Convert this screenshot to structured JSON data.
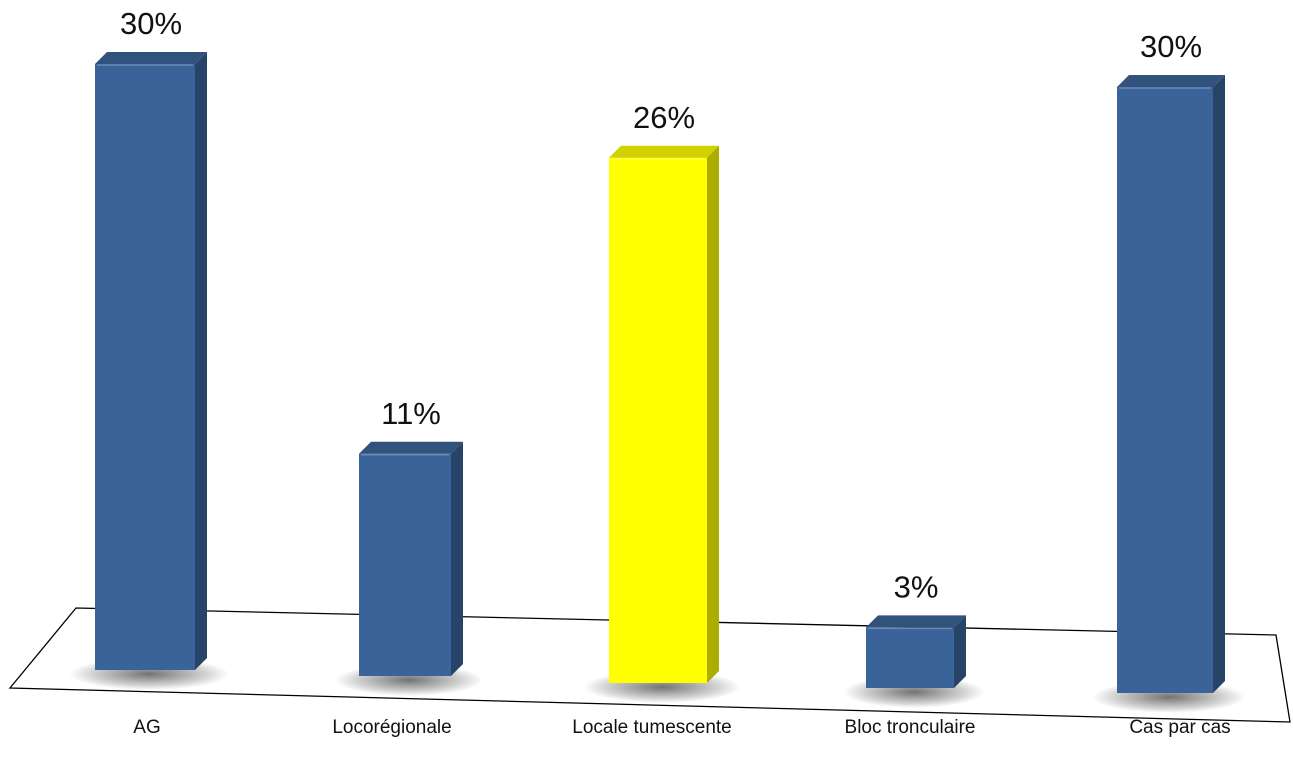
{
  "chart_data": {
    "type": "bar",
    "categories": [
      "AG",
      "Locorégionale",
      "Locale tumescente",
      "Bloc tronculaire",
      "Cas par cas"
    ],
    "values": [
      30,
      11,
      26,
      3,
      30
    ],
    "value_labels": [
      "30%",
      "11%",
      "26%",
      "3%",
      "30%"
    ],
    "title": "",
    "xlabel": "",
    "ylabel": "",
    "ylim": [
      0,
      30
    ],
    "grid": false,
    "legend": "none",
    "style": "3d-column",
    "bar_colors": [
      "#3a6499",
      "#3a6499",
      "#ffff00",
      "#3a6499",
      "#3a6499"
    ]
  }
}
